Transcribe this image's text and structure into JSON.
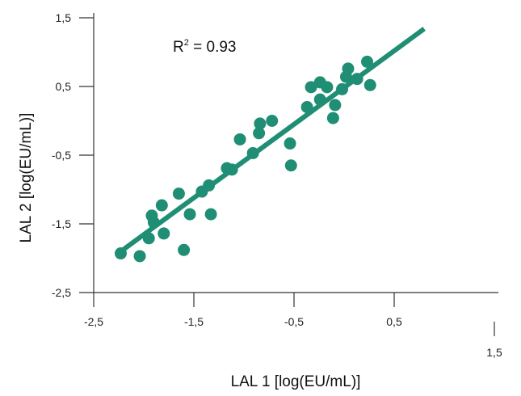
{
  "chart_data": {
    "type": "scatter",
    "xlabel": "LAL 1  [log(EU/mL)]",
    "ylabel": "LAL 2  [log(EU/mL)]",
    "xlim": [
      -2.5,
      1.5
    ],
    "ylim": [
      -2.5,
      1.5
    ],
    "x_ticks": [
      -2.5,
      -1.5,
      -0.5,
      0.5,
      1.5
    ],
    "y_ticks": [
      -2.5,
      -1.5,
      -0.5,
      0.5,
      1.5
    ],
    "x_tick_labels": [
      "-2,5",
      "-1,5",
      "-0,5",
      "0,5",
      "1,5"
    ],
    "y_tick_labels": [
      "-2,5",
      "-1,5",
      "-0,5",
      "0,5",
      "1,5"
    ],
    "annotation": {
      "r2_label": "R",
      "r2_sup": "2",
      "r2_value": " = 0.93"
    },
    "grid": false,
    "color": "#1f8e74",
    "fit_line": {
      "x": [
        -2.2,
        0.8
      ],
      "y": [
        -1.87,
        1.34
      ]
    },
    "points": [
      {
        "x": -2.23,
        "y": -1.93
      },
      {
        "x": -2.04,
        "y": -1.97
      },
      {
        "x": -1.95,
        "y": -1.71
      },
      {
        "x": -1.92,
        "y": -1.38
      },
      {
        "x": -1.9,
        "y": -1.48
      },
      {
        "x": -1.82,
        "y": -1.23
      },
      {
        "x": -1.8,
        "y": -1.64
      },
      {
        "x": -1.65,
        "y": -1.06
      },
      {
        "x": -1.6,
        "y": -1.88
      },
      {
        "x": -1.54,
        "y": -1.36
      },
      {
        "x": -1.42,
        "y": -1.03
      },
      {
        "x": -1.35,
        "y": -0.94
      },
      {
        "x": -1.33,
        "y": -1.36
      },
      {
        "x": -1.17,
        "y": -0.69
      },
      {
        "x": -1.12,
        "y": -0.71
      },
      {
        "x": -1.04,
        "y": -0.27
      },
      {
        "x": -0.91,
        "y": -0.47
      },
      {
        "x": -0.85,
        "y": -0.18
      },
      {
        "x": -0.84,
        "y": -0.04
      },
      {
        "x": -0.72,
        "y": 0.0
      },
      {
        "x": -0.54,
        "y": -0.33
      },
      {
        "x": -0.53,
        "y": -0.65
      },
      {
        "x": -0.37,
        "y": 0.2
      },
      {
        "x": -0.33,
        "y": 0.49
      },
      {
        "x": -0.24,
        "y": 0.56
      },
      {
        "x": -0.24,
        "y": 0.31
      },
      {
        "x": -0.17,
        "y": 0.49
      },
      {
        "x": -0.11,
        "y": 0.04
      },
      {
        "x": -0.09,
        "y": 0.23
      },
      {
        "x": -0.02,
        "y": 0.46
      },
      {
        "x": 0.02,
        "y": 0.64
      },
      {
        "x": 0.04,
        "y": 0.76
      },
      {
        "x": 0.13,
        "y": 0.61
      },
      {
        "x": 0.23,
        "y": 0.86
      },
      {
        "x": 0.26,
        "y": 0.52
      }
    ]
  }
}
